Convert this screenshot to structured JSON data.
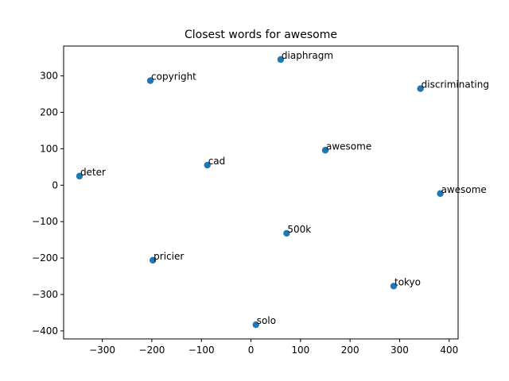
{
  "chart_data": {
    "type": "scatter",
    "title": "Closest words for awesome",
    "xlabel": "",
    "ylabel": "",
    "xlim": [
      -378,
      418
    ],
    "ylim": [
      -422,
      382
    ],
    "xticks": [
      -300,
      -200,
      -100,
      0,
      100,
      200,
      300,
      400
    ],
    "yticks": [
      -400,
      -300,
      -200,
      -100,
      0,
      100,
      200,
      300
    ],
    "xtick_labels": [
      "−300",
      "−200",
      "−100",
      "0",
      "100",
      "200",
      "300",
      "400"
    ],
    "ytick_labels": [
      "−400",
      "−300",
      "−200",
      "−100",
      "0",
      "100",
      "200",
      "300"
    ],
    "grid": false,
    "marker_color": "#1f77b4",
    "points": [
      {
        "label": "diaphragm",
        "x": 60,
        "y": 345
      },
      {
        "label": "copyright",
        "x": -203,
        "y": 287
      },
      {
        "label": "discriminating",
        "x": 342,
        "y": 265
      },
      {
        "label": "awesome",
        "x": 150,
        "y": 96
      },
      {
        "label": "cad",
        "x": -88,
        "y": 55
      },
      {
        "label": "deter",
        "x": -346,
        "y": 25
      },
      {
        "label": "awesome",
        "x": 382,
        "y": -23
      },
      {
        "label": "500k",
        "x": 72,
        "y": -132
      },
      {
        "label": "pricier",
        "x": -198,
        "y": -206
      },
      {
        "label": "tokyo",
        "x": 288,
        "y": -277
      },
      {
        "label": "solo",
        "x": 10,
        "y": -383
      }
    ]
  }
}
